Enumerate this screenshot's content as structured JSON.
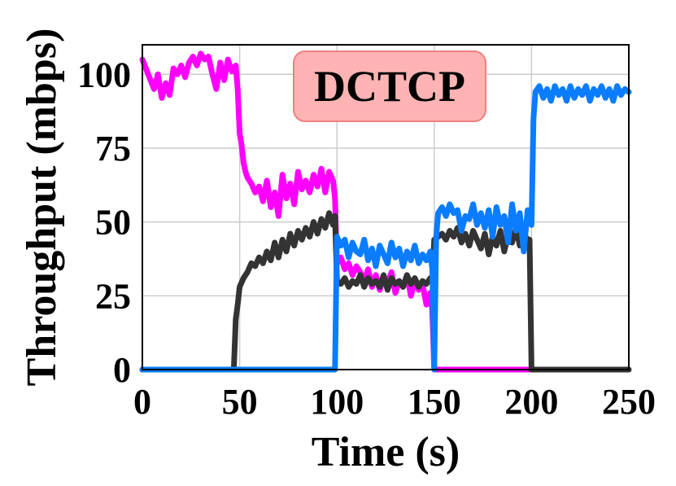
{
  "chart_data": {
    "type": "line",
    "title": "DCTCP",
    "xlabel": "Time (s)",
    "ylabel": "Throughput (mbps)",
    "xlim": [
      0,
      250
    ],
    "ylim": [
      0,
      110
    ],
    "grid": true,
    "x_ticks": [
      "0",
      "50",
      "100",
      "150",
      "200",
      "250"
    ],
    "y_ticks": [
      "0",
      "25",
      "50",
      "75",
      "100"
    ],
    "colors": {
      "title_box_fill": "#ffb3b3",
      "title_box_stroke": "#f08080"
    },
    "series": [
      {
        "color": "#ff00ff",
        "x": [
          0,
          3,
          6,
          8,
          10,
          12,
          14,
          16,
          18,
          20,
          22,
          24,
          26,
          28,
          30,
          32,
          34,
          36,
          38,
          40,
          42,
          44,
          46,
          48,
          49,
          50,
          51,
          52,
          53,
          54,
          56,
          58,
          60,
          62,
          64,
          66,
          68,
          70,
          72,
          74,
          76,
          78,
          80,
          82,
          84,
          86,
          88,
          90,
          92,
          94,
          96,
          98,
          99,
          100,
          102,
          104,
          106,
          108,
          110,
          112,
          114,
          116,
          118,
          120,
          122,
          124,
          126,
          128,
          130,
          132,
          134,
          136,
          138,
          140,
          142,
          144,
          146,
          148,
          149,
          150,
          152,
          160,
          170,
          180,
          190,
          198,
          199
        ],
        "y": [
          105,
          100,
          95,
          100,
          92,
          97,
          93,
          102,
          100,
          103,
          99,
          104,
          106,
          103,
          107,
          105,
          106,
          100,
          95,
          104,
          98,
          105,
          101,
          103,
          95,
          80,
          76,
          70,
          67,
          65,
          63,
          60,
          62,
          57,
          64,
          55,
          60,
          52,
          66,
          58,
          63,
          56,
          67,
          61,
          64,
          60,
          66,
          62,
          68,
          60,
          67,
          64,
          58,
          36,
          38,
          34,
          36,
          32,
          35,
          33,
          30,
          34,
          28,
          32,
          27,
          31,
          29,
          33,
          26,
          30,
          28,
          32,
          25,
          30,
          27,
          29,
          22,
          26,
          20,
          0,
          0,
          0,
          0,
          0,
          0,
          0,
          0
        ]
      },
      {
        "color": "#333333",
        "x": [
          0,
          47,
          48,
          49,
          50,
          52,
          54,
          56,
          58,
          60,
          62,
          64,
          66,
          68,
          70,
          72,
          74,
          76,
          78,
          80,
          82,
          84,
          86,
          88,
          90,
          92,
          94,
          96,
          98,
          99,
          100,
          102,
          104,
          106,
          108,
          110,
          112,
          114,
          116,
          118,
          120,
          122,
          124,
          126,
          128,
          130,
          132,
          134,
          136,
          138,
          140,
          142,
          144,
          146,
          148,
          149,
          150,
          152,
          154,
          156,
          158,
          160,
          162,
          164,
          166,
          168,
          170,
          172,
          174,
          176,
          178,
          180,
          182,
          184,
          186,
          188,
          190,
          192,
          194,
          196,
          198,
          199,
          200,
          201,
          210,
          220,
          230,
          240,
          250
        ],
        "y": [
          0,
          0,
          17,
          22,
          28,
          31,
          33,
          36,
          35,
          38,
          36,
          40,
          37,
          43,
          38,
          44,
          40,
          46,
          42,
          47,
          44,
          48,
          45,
          50,
          46,
          51,
          48,
          53,
          49,
          52,
          30,
          29,
          31,
          28,
          30,
          29,
          32,
          28,
          31,
          29,
          30,
          28,
          32,
          27,
          31,
          29,
          30,
          28,
          32,
          29,
          31,
          28,
          30,
          29,
          31,
          30,
          44,
          45,
          46,
          44,
          47,
          45,
          48,
          43,
          46,
          42,
          47,
          44,
          41,
          46,
          39,
          45,
          42,
          47,
          40,
          46,
          43,
          48,
          42,
          46,
          44,
          44,
          0,
          0,
          0,
          0,
          0,
          0,
          0
        ]
      },
      {
        "color": "#0a7cff",
        "x": [
          0,
          98,
          99,
          100,
          102,
          104,
          106,
          108,
          110,
          112,
          114,
          116,
          118,
          120,
          122,
          124,
          126,
          128,
          130,
          132,
          134,
          136,
          138,
          140,
          142,
          144,
          146,
          148,
          149,
          150,
          151,
          152,
          154,
          156,
          158,
          160,
          162,
          164,
          166,
          168,
          170,
          172,
          174,
          176,
          178,
          180,
          182,
          184,
          186,
          188,
          190,
          192,
          194,
          196,
          198,
          199,
          200,
          201,
          202,
          204,
          206,
          208,
          210,
          212,
          214,
          216,
          218,
          220,
          222,
          224,
          226,
          228,
          230,
          232,
          234,
          236,
          238,
          240,
          242,
          244,
          246,
          248,
          250
        ],
        "y": [
          0,
          0,
          0,
          45,
          42,
          44,
          38,
          43,
          40,
          39,
          44,
          37,
          41,
          35,
          42,
          39,
          36,
          43,
          38,
          41,
          35,
          40,
          37,
          42,
          36,
          39,
          37,
          40,
          34,
          0,
          45,
          53,
          55,
          52,
          56,
          53,
          54,
          47,
          52,
          51,
          56,
          49,
          53,
          48,
          54,
          45,
          55,
          49,
          52,
          43,
          56,
          47,
          53,
          40,
          54,
          50,
          49,
          85,
          94,
          96,
          92,
          95,
          91,
          96,
          93,
          95,
          91,
          96,
          92,
          95,
          93,
          96,
          91,
          95,
          93,
          96,
          92,
          95,
          91,
          96,
          93,
          95,
          94
        ]
      }
    ]
  }
}
